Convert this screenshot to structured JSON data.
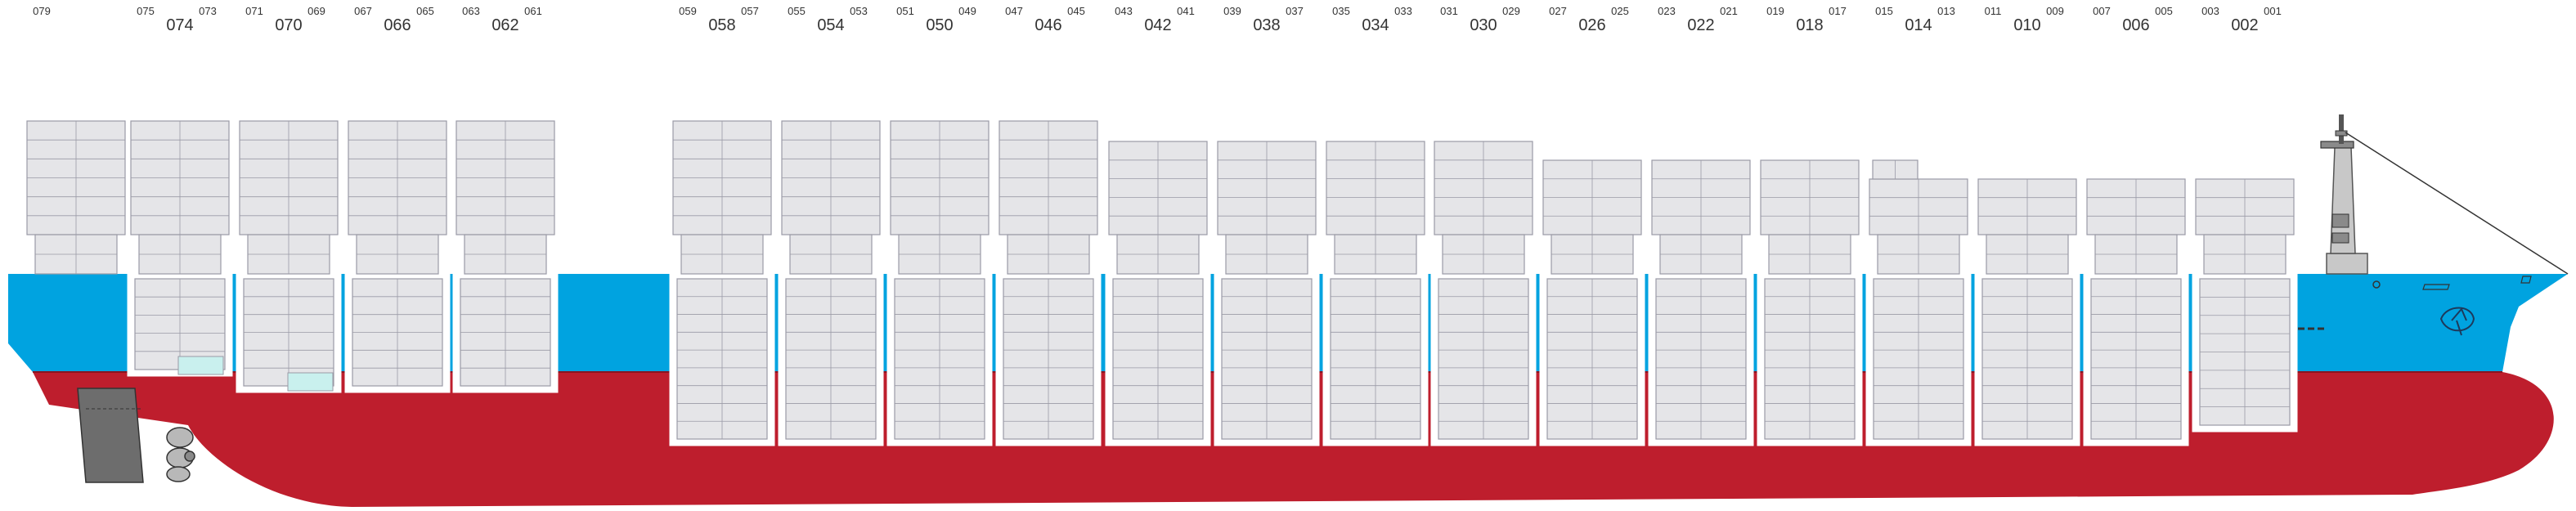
{
  "colors": {
    "hull_red": "#be1e2d",
    "hull_blue": "#00a3e0",
    "hull_blue_dark": "#0090c8",
    "container_fill": "#e5e5e8",
    "container_line": "#9a9aa6",
    "hold_fill": "#ffffff",
    "reefer_fill": "#c9f0ee",
    "rudder_fill": "#6d6d6d",
    "superstructure_fill": "#c8c8c8"
  },
  "bays": [
    {
      "small": [
        "079",
        ""
      ]
    },
    {
      "main": "074",
      "small": [
        "075",
        "073"
      ]
    },
    {
      "main": "070",
      "small": [
        "071",
        "069"
      ]
    },
    {
      "main": "066",
      "small": [
        "067",
        "065"
      ]
    },
    {
      "main": "062",
      "small": [
        "063",
        "061"
      ]
    },
    {
      "main": "058",
      "small": [
        "059",
        "057"
      ]
    },
    {
      "main": "054",
      "small": [
        "055",
        "053"
      ]
    },
    {
      "main": "050",
      "small": [
        "051",
        "049"
      ]
    },
    {
      "main": "046",
      "small": [
        "047",
        "045"
      ]
    },
    {
      "main": "042",
      "small": [
        "043",
        "041"
      ]
    },
    {
      "main": "038",
      "small": [
        "039",
        "037"
      ]
    },
    {
      "main": "034",
      "small": [
        "035",
        "033"
      ]
    },
    {
      "main": "030",
      "small": [
        "031",
        "029"
      ]
    },
    {
      "main": "026",
      "small": [
        "027",
        "025"
      ]
    },
    {
      "main": "022",
      "small": [
        "023",
        "021"
      ]
    },
    {
      "main": "018",
      "small": [
        "019",
        "017"
      ]
    },
    {
      "main": "014",
      "small": [
        "015",
        "013"
      ]
    },
    {
      "main": "010",
      "small": [
        "011",
        "009"
      ]
    },
    {
      "main": "006",
      "small": [
        "007",
        "005"
      ]
    },
    {
      "main": "002",
      "small": [
        "003",
        "001"
      ]
    }
  ]
}
